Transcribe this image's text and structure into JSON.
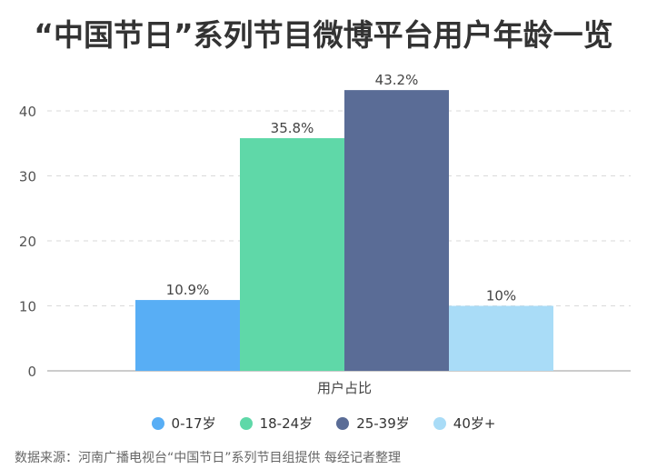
{
  "title": "“中国节日”系列节目微博平台用户年龄一览",
  "source": "数据来源：河南广播电视台“中国节日”系列节目组提供 每经记者整理",
  "chart_data": {
    "type": "bar",
    "categories": [
      "用户占比"
    ],
    "series": [
      {
        "name": "0-17岁",
        "values": [
          10.9
        ],
        "label": "10.9%",
        "color": "#58aef5"
      },
      {
        "name": "18-24岁",
        "values": [
          35.8
        ],
        "label": "35.8%",
        "color": "#5fd8a8"
      },
      {
        "name": "25-39岁",
        "values": [
          43.2
        ],
        "label": "43.2%",
        "color": "#5a6c96"
      },
      {
        "name": "40岁+",
        "values": [
          10
        ],
        "label": "10%",
        "color": "#a9dcf7"
      }
    ],
    "ylim": [
      0,
      45
    ],
    "yticks": [
      "0",
      "10",
      "20",
      "30",
      "40"
    ],
    "grid": true,
    "legend_position": "bottom"
  }
}
